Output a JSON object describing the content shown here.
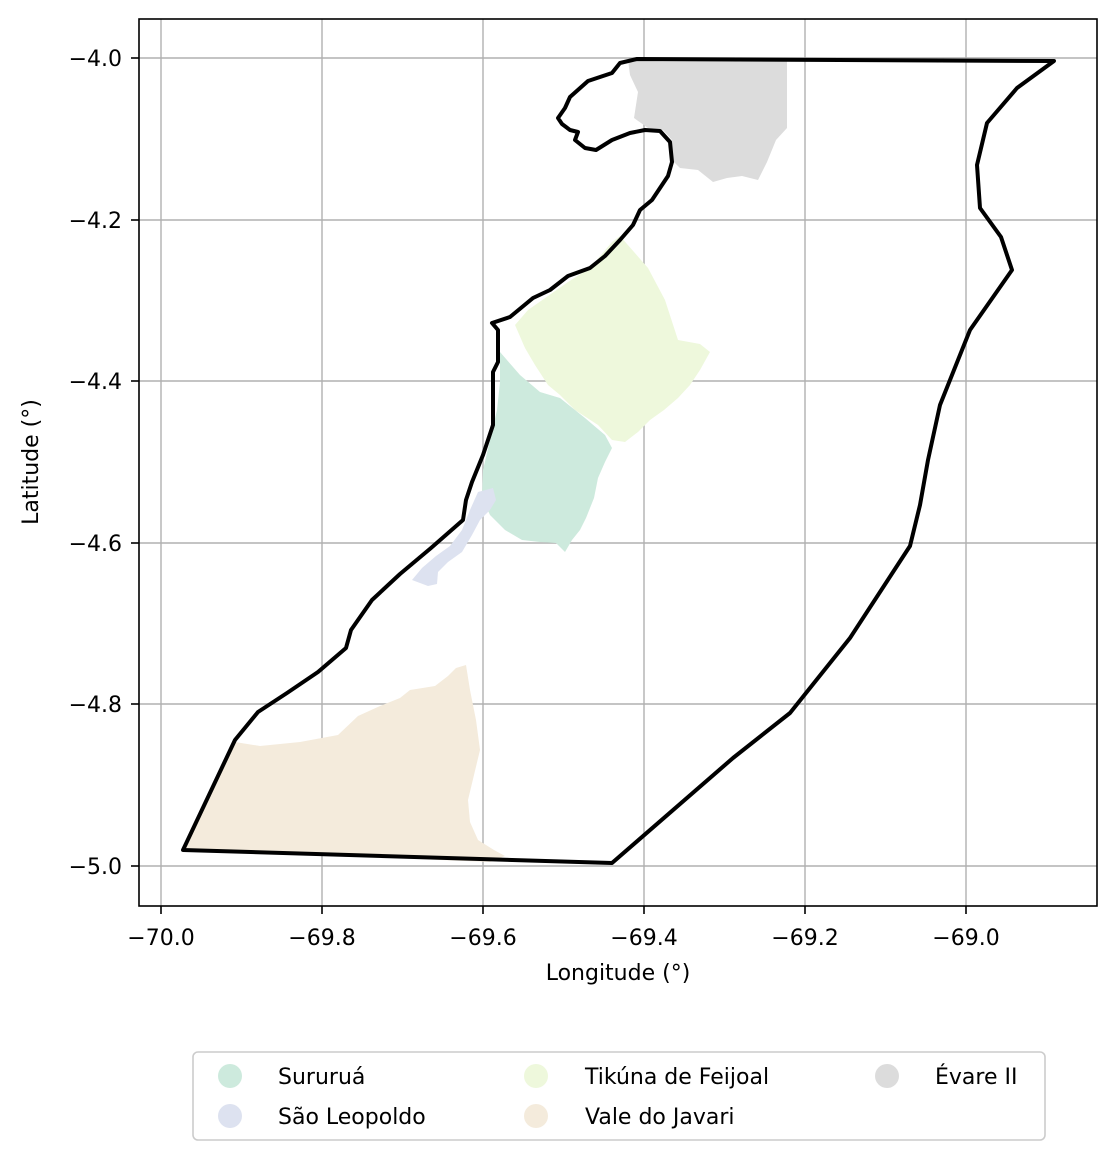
{
  "map": {
    "xlabel": "Longitude (°)",
    "ylabel": "Latitude (°)",
    "x_ticks": [
      "−70.0",
      "−69.8",
      "−69.6",
      "−69.4",
      "−69.2",
      "−69.0"
    ],
    "y_ticks": [
      "−4.0",
      "−4.2",
      "−4.4",
      "−4.6",
      "−4.8",
      "−5.0"
    ],
    "grid": true,
    "legend_position": "bottom-center",
    "outline_color": "#000000",
    "territories": [
      {
        "name": "Sururuá",
        "color": "#cdeadd"
      },
      {
        "name": "São Leopoldo",
        "color": "#dde2f0"
      },
      {
        "name": "Tikúna de Feijoal",
        "color": "#eef8dc"
      },
      {
        "name": "Vale do Javari",
        "color": "#f4ebdc"
      },
      {
        "name": "Évare II",
        "color": "#dcdcdc"
      }
    ]
  }
}
